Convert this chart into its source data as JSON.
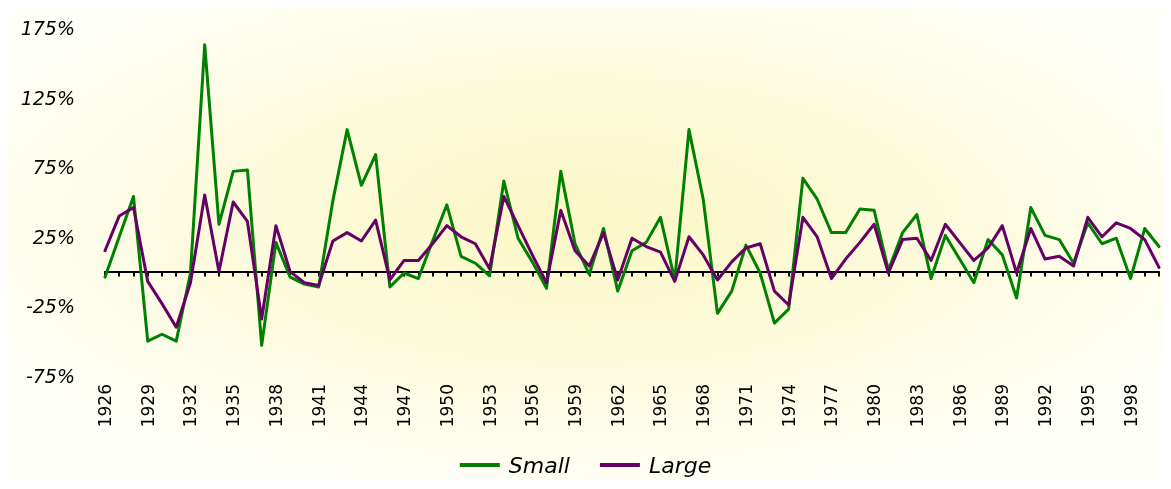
{
  "chart_data": {
    "type": "line",
    "categories": [
      "1926",
      null,
      null,
      "1929",
      null,
      null,
      "1932",
      null,
      null,
      "1935",
      null,
      null,
      "1938",
      null,
      null,
      "1941",
      null,
      null,
      "1944",
      null,
      null,
      "1947",
      null,
      null,
      "1950",
      null,
      null,
      "1953",
      null,
      null,
      "1956",
      null,
      null,
      "1959",
      null,
      null,
      "1962",
      null,
      null,
      "1965",
      null,
      null,
      "1968",
      null,
      null,
      "1971",
      null,
      null,
      "1974",
      null,
      null,
      "1977",
      null,
      null,
      "1980",
      null,
      null,
      "1983",
      null,
      null,
      "1986",
      null,
      null,
      "1989",
      null,
      null,
      "1992",
      null,
      null,
      "1995",
      null,
      null,
      "1998",
      null,
      null
    ],
    "series": [
      {
        "name": "Small",
        "color": "#008000",
        "values": [
          -4,
          25,
          54,
          -50,
          -45,
          -50,
          -1,
          163,
          34,
          72,
          73,
          -53,
          21,
          -4,
          -9,
          -11,
          51,
          102,
          62,
          84,
          -11,
          -1,
          -5,
          22,
          48,
          11,
          6,
          -3,
          65,
          24,
          7,
          -12,
          72,
          20,
          -2,
          31,
          -14,
          15,
          21,
          39,
          -6,
          102,
          52,
          -30,
          -14,
          19,
          -1,
          -37,
          -27,
          67,
          52,
          28,
          28,
          45,
          44,
          1,
          28,
          41,
          -5,
          26,
          9,
          -8,
          23,
          12,
          -19,
          46,
          26,
          23,
          6,
          35,
          20,
          24,
          -5,
          31,
          18
        ]
      },
      {
        "name": "Large",
        "color": "#660066",
        "values": [
          15,
          40,
          46,
          -7,
          -23,
          -40,
          -8,
          55,
          0,
          50,
          36,
          -34,
          33,
          0,
          -8,
          -10,
          22,
          28,
          22,
          37,
          -6,
          8,
          8,
          20,
          33,
          25,
          20,
          2,
          54,
          33,
          12,
          -8,
          44,
          15,
          4,
          28,
          -6,
          24,
          18,
          14,
          -7,
          25,
          12,
          -6,
          7,
          17,
          20,
          -14,
          -24,
          39,
          25,
          -5,
          9,
          21,
          34,
          -1,
          23,
          24,
          8,
          34,
          21,
          8,
          17,
          33,
          -1,
          31,
          9,
          11,
          4,
          39,
          25,
          35,
          31,
          23,
          3
        ]
      }
    ],
    "ylim": [
      -75,
      175
    ],
    "yticks": [
      {
        "value": -75,
        "label": "-75%"
      },
      {
        "value": -25,
        "label": "-25%"
      },
      {
        "value": 25,
        "label": "25%"
      },
      {
        "value": 75,
        "label": "75%"
      },
      {
        "value": 125,
        "label": "125%"
      },
      {
        "value": 175,
        "label": "175%"
      }
    ],
    "grid": false,
    "legend": "bottom",
    "marker": "none",
    "line_style": "solid"
  }
}
